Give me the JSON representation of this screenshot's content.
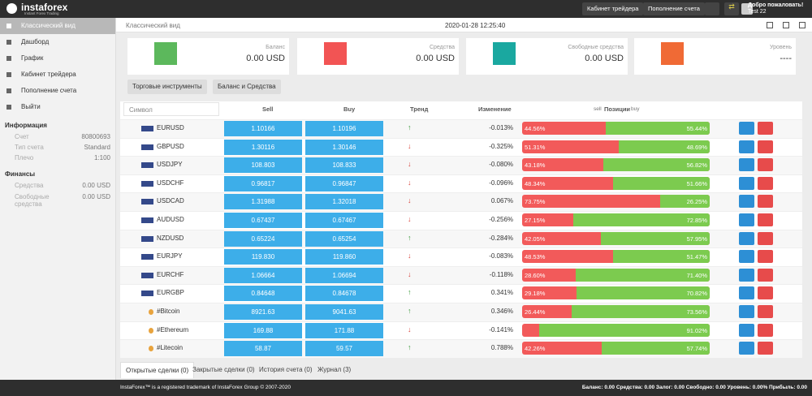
{
  "header": {
    "logo": "instaforex",
    "logo_sub": "Instant Forex Trading",
    "buttons": [
      "Кабинет трейдера",
      "Пополнение счета"
    ],
    "welcome": "Добро пожаловать!",
    "user": "Test 22"
  },
  "sidebar": {
    "menu": [
      "Классический вид",
      "Дашборд",
      "График",
      "Кабинет трейдера",
      "Пополнение счета",
      "Выйти"
    ],
    "info_title": "Информация",
    "info": [
      [
        "Счет",
        "80800693"
      ],
      [
        "Тип счета",
        "Standard"
      ],
      [
        "Плечо",
        "1:100"
      ]
    ],
    "finance_title": "Финансы",
    "finance": [
      [
        "Средства",
        "0.00 USD"
      ],
      [
        "Свободные средства",
        "0.00 USD"
      ]
    ]
  },
  "main": {
    "breadcrumb": "Классический вид",
    "datetime": "2020-01-28 12:25:40",
    "cards": [
      {
        "label": "Баланс",
        "value": "0.00 USD",
        "color": "#5cb85c"
      },
      {
        "label": "Средства",
        "value": "0.00 USD",
        "color": "#f25454"
      },
      {
        "label": "Свободные средства",
        "value": "0.00 USD",
        "color": "#1aa8a0"
      },
      {
        "label": "Уровень",
        "value": "----",
        "color": "#f06a35"
      }
    ],
    "tabs": [
      "Торговые инструменты",
      "Баланс и Средства"
    ]
  },
  "table": {
    "columns": {
      "symbol": "Символ",
      "sell": "Sell",
      "buy": "Buy",
      "trend": "Тренд",
      "change": "Изменение",
      "pos_sell": "sell",
      "positions": "Позиции",
      "pos_buy": "buy"
    },
    "rows": [
      [
        "EURUSD",
        "1.10166",
        "1.10196",
        "up",
        "-0.013%",
        "44.56%",
        "55.44%"
      ],
      [
        "GBPUSD",
        "1.30116",
        "1.30146",
        "down",
        "-0.325%",
        "51.31%",
        "48.69%"
      ],
      [
        "USDJPY",
        "108.803",
        "108.833",
        "down",
        "-0.080%",
        "43.18%",
        "56.82%"
      ],
      [
        "USDCHF",
        "0.96817",
        "0.96847",
        "down",
        "-0.096%",
        "48.34%",
        "51.66%"
      ],
      [
        "USDCAD",
        "1.31988",
        "1.32018",
        "down",
        "0.067%",
        "73.75%",
        "26.25%"
      ],
      [
        "AUDUSD",
        "0.67437",
        "0.67467",
        "down",
        "-0.256%",
        "27.15%",
        "72.85%"
      ],
      [
        "NZDUSD",
        "0.65224",
        "0.65254",
        "up",
        "-0.284%",
        "42.05%",
        "57.95%"
      ],
      [
        "EURJPY",
        "119.830",
        "119.860",
        "down",
        "-0.083%",
        "48.53%",
        "51.47%"
      ],
      [
        "EURCHF",
        "1.06664",
        "1.06694",
        "down",
        "-0.118%",
        "28.60%",
        "71.40%"
      ],
      [
        "EURGBP",
        "0.84648",
        "0.84678",
        "up",
        "0.341%",
        "29.18%",
        "70.82%"
      ],
      [
        "#Bitcoin",
        "8921.63",
        "9041.63",
        "up",
        "0.346%",
        "26.44%",
        "73.56%"
      ],
      [
        "#Ethereum",
        "169.88",
        "171.88",
        "down",
        "-0.141%",
        null,
        "91.02%"
      ],
      [
        "#Litecoin",
        "58.87",
        "59.57",
        "up",
        "0.788%",
        "42.26%",
        "57.74%"
      ]
    ]
  },
  "bottom_tabs": [
    "Открытые сделки (0)",
    "Закрытые сделки (0)",
    "История счета (0)",
    "Журнал (3)"
  ],
  "footer": {
    "left": "InstaForex™ is a registered trademark of InstaForex Group © 2007-2020",
    "right": "Баланс: 0.00 Средства: 0.00 Залог: 0.00 Свободно: 0.00 Уровень: 0.00% Прибыль: 0.00"
  }
}
